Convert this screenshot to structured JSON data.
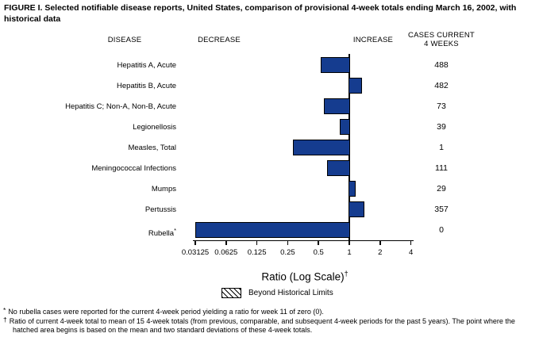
{
  "title": "FIGURE I. Selected notifiable disease reports, United States, comparison of provisional 4-week totals ending March 16, 2002, with historical data",
  "columns": {
    "disease": "DISEASE",
    "decrease": "DECREASE",
    "increase": "INCREASE",
    "cases_line1": "CASES CURRENT",
    "cases_line2": "4 WEEKS"
  },
  "chart_data": {
    "type": "bar",
    "orientation": "horizontal",
    "title": "Selected notifiable disease reports, United States, comparison of provisional 4-week totals ending March 16, 2002, with historical data",
    "xlabel": "Ratio (Log Scale)",
    "xlabel_sup": "†",
    "x_scale": "log2",
    "baseline": 1,
    "x_ticks": [
      0.03125,
      0.0625,
      0.125,
      0.25,
      0.5,
      1,
      2,
      4
    ],
    "x_tick_labels": [
      "0.03125",
      "0.0625",
      "0.125",
      "0.25",
      "0.5",
      "1",
      "2",
      "4"
    ],
    "categories": [
      "Hepatitis A, Acute",
      "Hepatitis B, Acute",
      "Hepatitis C; Non-A, Non-B, Acute",
      "Legionellosis",
      "Measles, Total",
      "Meningococcal Infections",
      "Mumps",
      "Pertussis",
      "Rubella"
    ],
    "rows": [
      {
        "disease": "Hepatitis A, Acute",
        "marker": "",
        "ratio": 0.53,
        "cases": "488"
      },
      {
        "disease": "Hepatitis B, Acute",
        "marker": "",
        "ratio": 1.34,
        "cases": "482"
      },
      {
        "disease": "Hepatitis C; Non-A, Non-B, Acute",
        "marker": "",
        "ratio": 0.56,
        "cases": "73"
      },
      {
        "disease": "Legionellosis",
        "marker": "",
        "ratio": 0.8,
        "cases": "39"
      },
      {
        "disease": "Measles, Total",
        "marker": "",
        "ratio": 0.28,
        "cases": "1"
      },
      {
        "disease": "Meningococcal Infections",
        "marker": "",
        "ratio": 0.61,
        "cases": "111"
      },
      {
        "disease": "Mumps",
        "marker": "",
        "ratio": 1.15,
        "cases": "29"
      },
      {
        "disease": "Pertussis",
        "marker": "",
        "ratio": 1.4,
        "cases": "357"
      },
      {
        "disease": "Rubella",
        "marker": "*",
        "ratio": 0,
        "cases": "0"
      }
    ],
    "series": [
      {
        "name": "Ratio of current 4-week total to historical mean",
        "values": [
          0.53,
          1.34,
          0.56,
          0.8,
          0.28,
          0.61,
          1.15,
          1.4,
          0
        ]
      },
      {
        "name": "Cases current 4 weeks",
        "values": [
          488,
          482,
          73,
          39,
          1,
          111,
          29,
          357,
          0
        ]
      }
    ],
    "xlim": [
      0.03125,
      4
    ],
    "grid": false,
    "legend_position": "bottom"
  },
  "legend": {
    "label": "Beyond Historical Limits",
    "swatch": "diagonal-hatch"
  },
  "footnotes": [
    {
      "marker": "*",
      "text": "No rubella cases were reported for the current 4-week period yielding a ratio for week 11 of zero (0)."
    },
    {
      "marker": "†",
      "text": "Ratio of current 4-week total to mean of 15 4-week totals (from previous, comparable, and subsequent 4-week periods for the past 5 years). The point where the hatched area begins is based on the mean and two standard deviations of these 4-week totals."
    }
  ],
  "colors": {
    "bar_fill": "#153c8f",
    "bar_border": "#000000",
    "axis": "#000000",
    "text": "#000000",
    "background": "#ffffff"
  }
}
